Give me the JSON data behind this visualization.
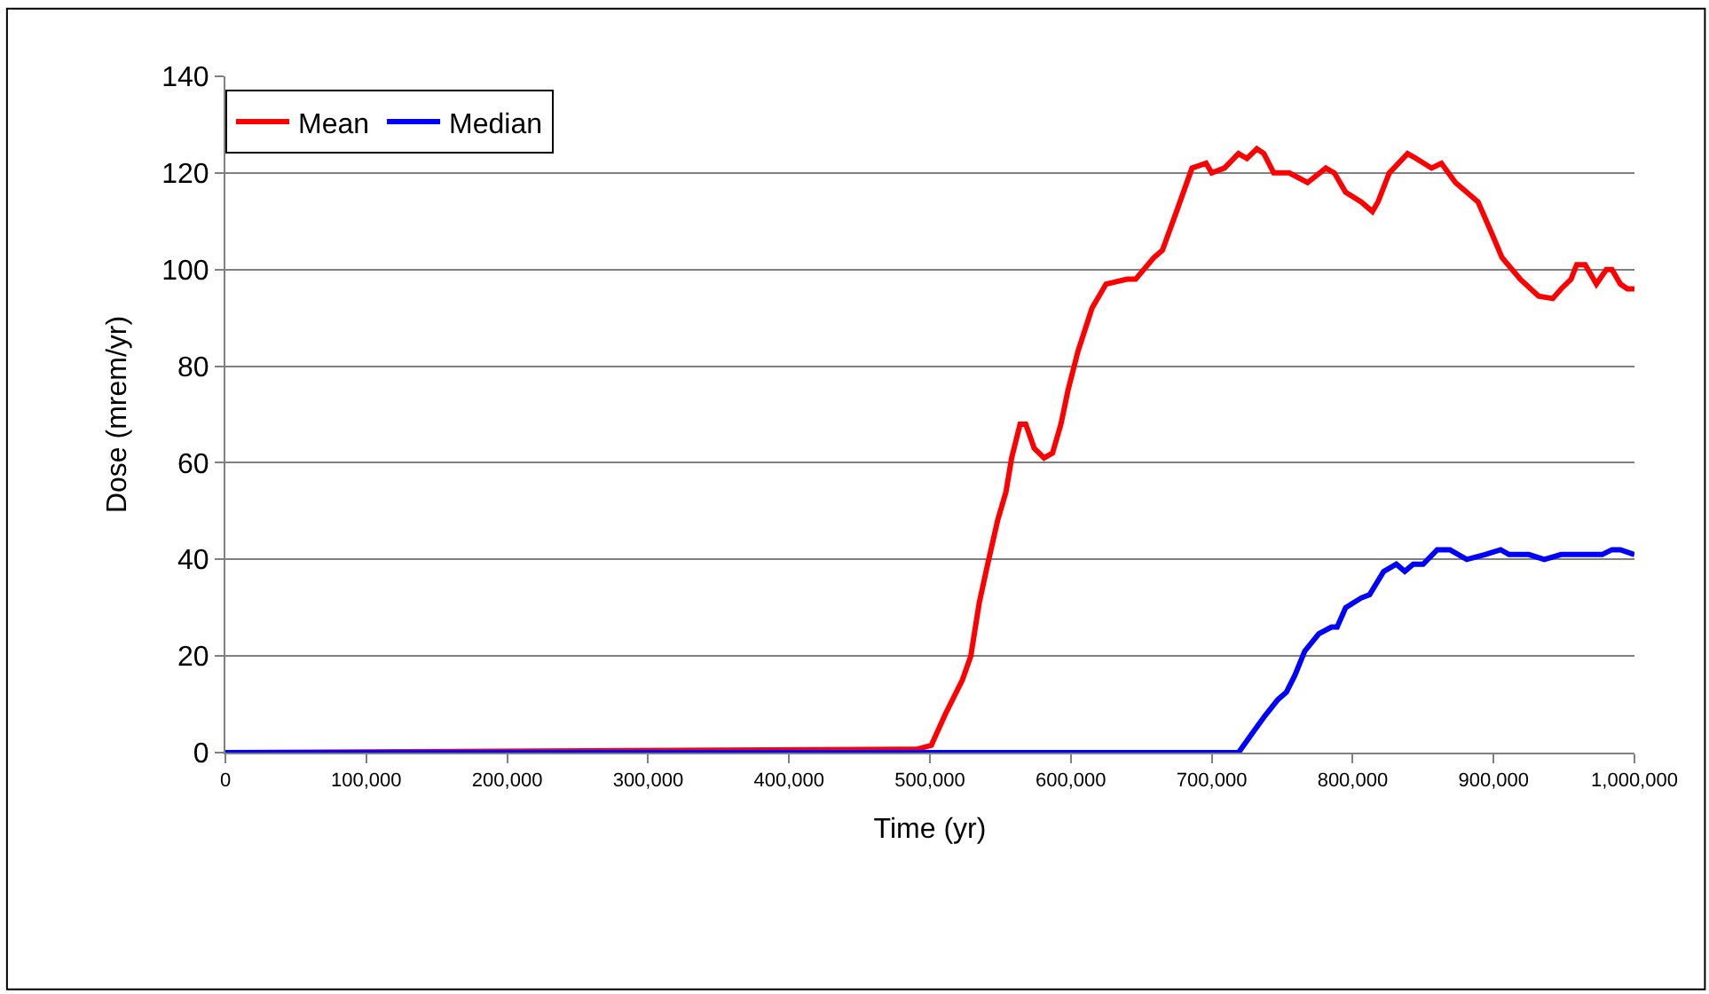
{
  "chart_data": {
    "type": "line",
    "xlabel": "Time (yr)",
    "ylabel": "Dose (mrem/yr)",
    "xlim": [
      0,
      1000000
    ],
    "xticks": [
      {
        "value": 0,
        "label": "0"
      },
      {
        "value": 100000,
        "label": "100,000"
      },
      {
        "value": 200000,
        "label": "200,000"
      },
      {
        "value": 300000,
        "label": "300,000"
      },
      {
        "value": 400000,
        "label": "400,000"
      },
      {
        "value": 500000,
        "label": "500,000"
      },
      {
        "value": 600000,
        "label": "600,000"
      },
      {
        "value": 700000,
        "label": "700,000"
      },
      {
        "value": 800000,
        "label": "800,000"
      },
      {
        "value": 900000,
        "label": "900,000"
      },
      {
        "value": 1000000,
        "label": "1,000,000"
      }
    ],
    "ylim": [
      0,
      140
    ],
    "yticks": [
      0,
      20,
      40,
      60,
      80,
      100,
      120,
      140
    ],
    "grid": "y",
    "legend": "top left",
    "marker": "none",
    "line_style": "solid",
    "series": [
      {
        "name": "Mean",
        "color": "#ff0000",
        "x": [
          0,
          491000,
          501000,
          511000,
          523000,
          529000,
          535000,
          541000,
          548000,
          554000,
          558000,
          564000,
          568000,
          574000,
          581000,
          587000,
          593000,
          598000,
          605000,
          615000,
          625000,
          640000,
          646000,
          659000,
          665000,
          675000,
          686000,
          696000,
          700000,
          709000,
          719000,
          725000,
          732000,
          737000,
          744000,
          755000,
          768000,
          781000,
          787000,
          795000,
          806000,
          814000,
          818000,
          826000,
          839000,
          845000,
          856000,
          863000,
          873000,
          889000,
          898000,
          906000,
          919000,
          932000,
          942000,
          948000,
          955000,
          959000,
          965000,
          973000,
          980000,
          984000,
          990000,
          995000,
          1000000
        ],
        "values": [
          0,
          0.7,
          1.5,
          8,
          15,
          20,
          31,
          39,
          48,
          54,
          61,
          68,
          68,
          63,
          61,
          62,
          68,
          75,
          83,
          92,
          97,
          98,
          98,
          102.5,
          104,
          112,
          121,
          122,
          120,
          121,
          124,
          123,
          125,
          124,
          120,
          120,
          118,
          121,
          120,
          116,
          114,
          112,
          114,
          120,
          124,
          123,
          121,
          122,
          118,
          114,
          108,
          102.5,
          98,
          94.5,
          94,
          96,
          98,
          101,
          101,
          97,
          100,
          100,
          97,
          96,
          96
        ]
      },
      {
        "name": "Median",
        "color": "#0000ff",
        "x": [
          0,
          719000,
          730000,
          738000,
          747000,
          753000,
          759000,
          766000,
          776000,
          785000,
          789000,
          795000,
          806000,
          812000,
          822000,
          831000,
          837000,
          843000,
          850000,
          860000,
          869000,
          881000,
          894000,
          905000,
          911000,
          925000,
          936000,
          948000,
          977000,
          984000,
          990000,
          1000000
        ],
        "values": [
          0,
          0,
          4.5,
          7.7,
          11,
          12.5,
          16,
          21,
          24.6,
          26,
          26,
          30,
          32,
          32.7,
          37.5,
          39,
          37.5,
          39,
          39,
          42,
          42,
          40,
          41,
          42,
          41,
          41,
          40,
          41,
          41,
          42,
          42,
          41
        ]
      }
    ]
  }
}
